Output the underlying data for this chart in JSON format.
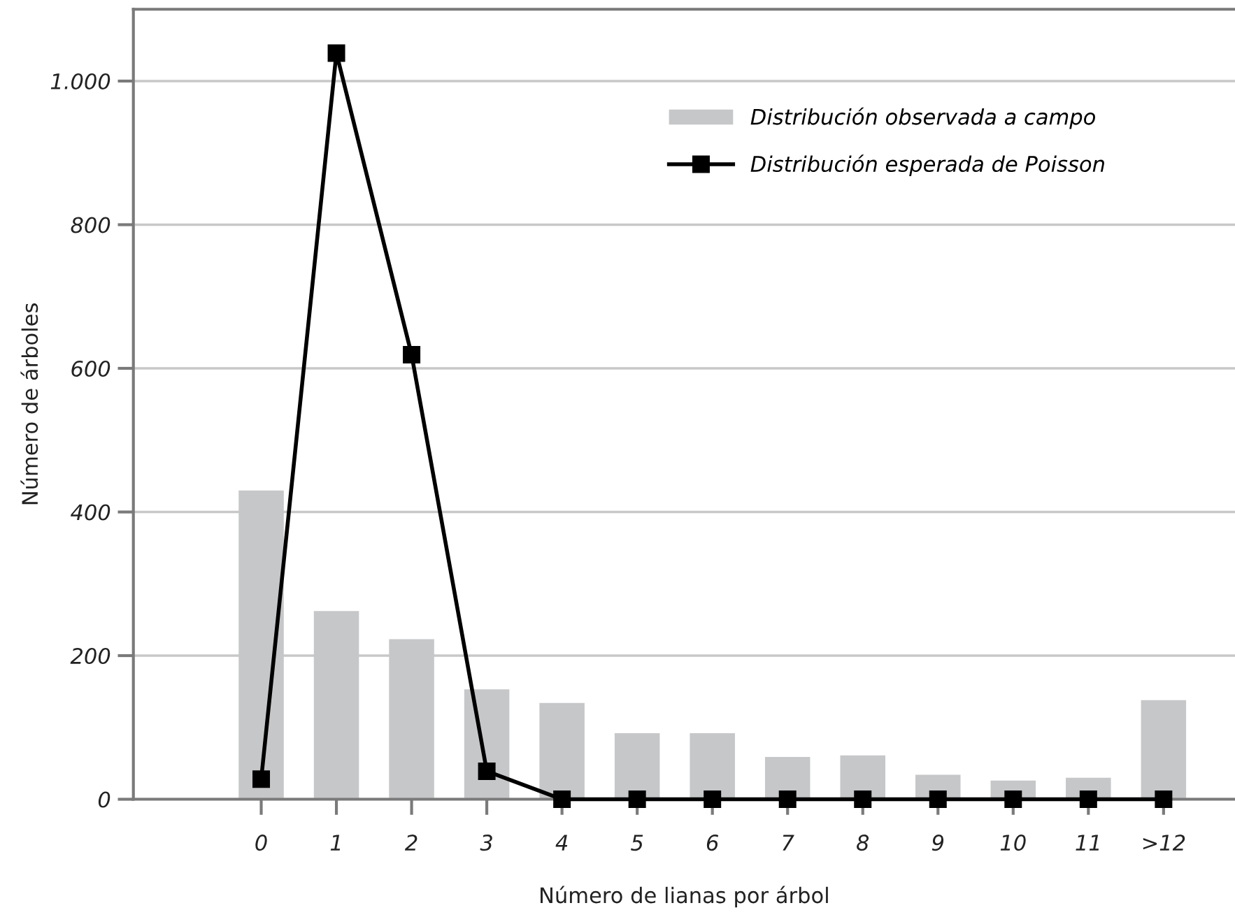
{
  "chart_data": {
    "type": "bar",
    "xlabel": "Número de lianas por árbol",
    "ylabel": "Número de árboles",
    "categories": [
      "0",
      "1",
      "2",
      "3",
      "4",
      "5",
      "6",
      "7",
      "8",
      "9",
      "10",
      "11",
      ">12"
    ],
    "series": [
      {
        "name": "Distribución observada a campo",
        "color": "#c6c7c9",
        "values": [
          430,
          262,
          223,
          153,
          134,
          92,
          92,
          59,
          61,
          34,
          26,
          30,
          138
        ]
      },
      {
        "name": "Distribución esperada de Poisson",
        "type": "line",
        "color": "#000000",
        "marker": "square",
        "line_style": "solid",
        "values": [
          28,
          1039,
          619,
          39,
          0,
          0,
          0,
          0,
          0,
          0,
          0,
          0,
          0
        ]
      }
    ],
    "ylim": [
      0,
      1100
    ],
    "yticks": [
      0,
      200,
      400,
      600,
      800,
      {
        "value": 1000,
        "label": "1.000"
      }
    ],
    "grid": "y",
    "legend": "top right"
  }
}
